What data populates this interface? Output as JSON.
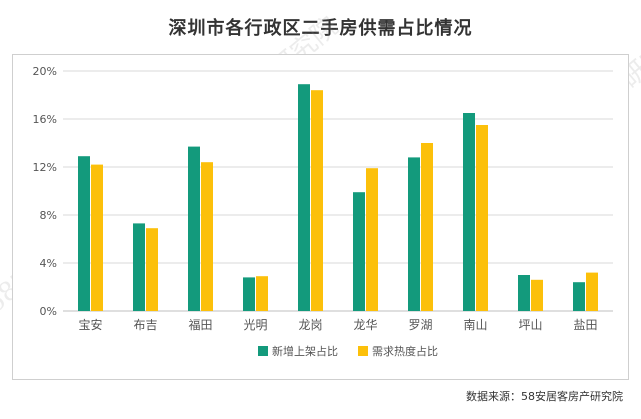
{
  "title": "深圳市各行政区二手房供需占比情况",
  "source": "数据来源：58安居客房产研究院",
  "watermark": "58安居客房产研究院",
  "colors": {
    "supply": "#139a7c",
    "demand": "#fcc00a",
    "axis_text": "#555555",
    "grid": "#d9d9d9"
  },
  "chart_data": {
    "type": "bar",
    "title": "深圳市各行政区二手房供需占比情况",
    "categories": [
      "宝安",
      "布吉",
      "福田",
      "光明",
      "龙岗",
      "龙华",
      "罗湖",
      "南山",
      "坪山",
      "盐田"
    ],
    "series": [
      {
        "name": "新增上架占比",
        "color": "#139a7c",
        "values": [
          12.9,
          7.3,
          13.7,
          2.8,
          18.9,
          9.9,
          12.8,
          16.5,
          3.0,
          2.4
        ]
      },
      {
        "name": "需求热度占比",
        "color": "#fcc00a",
        "values": [
          12.2,
          6.9,
          12.4,
          2.9,
          18.4,
          11.9,
          14.0,
          15.5,
          2.6,
          3.2
        ]
      }
    ],
    "yticks": [
      "0%",
      "4%",
      "8%",
      "12%",
      "16%",
      "20%"
    ],
    "ylim": [
      0,
      20
    ],
    "grid": true,
    "legend": "bottom"
  }
}
